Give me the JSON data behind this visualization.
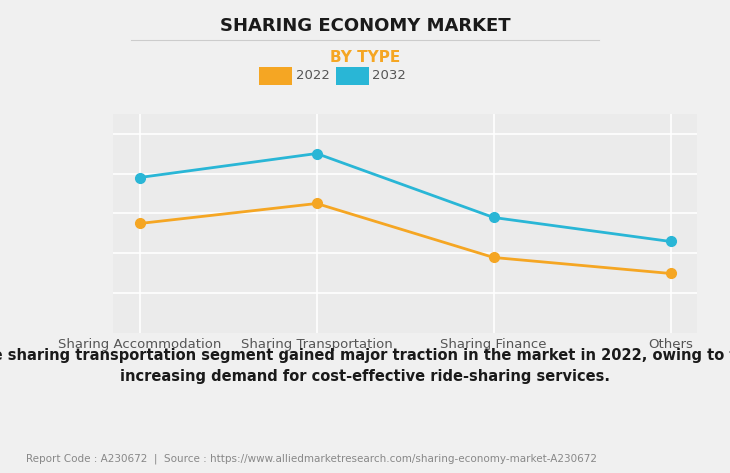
{
  "title": "SHARING ECONOMY MARKET",
  "subtitle": "BY TYPE",
  "subtitle_color": "#f5a623",
  "categories": [
    "Sharing Accommodation",
    "Sharing Transportation",
    "Sharing Finance",
    "Others"
  ],
  "series_2022": {
    "label": "2022",
    "values": [
      55,
      65,
      38,
      30
    ],
    "color": "#f5a623"
  },
  "series_2032": {
    "label": "2032",
    "values": [
      78,
      90,
      58,
      46
    ],
    "color": "#29b6d6"
  },
  "ylim": [
    0,
    110
  ],
  "background_color": "#f0f0f0",
  "plot_bg_color": "#ebebeb",
  "grid_color": "#ffffff",
  "title_fontsize": 13,
  "subtitle_fontsize": 11,
  "tick_label_fontsize": 9.5,
  "legend_fontsize": 9.5,
  "annotation_text": "The sharing transportation segment gained major traction in the market in 2022, owing to the\nincreasing demand for cost-effective ride-sharing services.",
  "footer_text": "Report Code : A230672  |  Source : https://www.alliedmarketresearch.com/sharing-economy-market-A230672",
  "annotation_fontsize": 10.5,
  "footer_fontsize": 7.5,
  "separator_color": "#cccccc",
  "tick_color": "#555555"
}
